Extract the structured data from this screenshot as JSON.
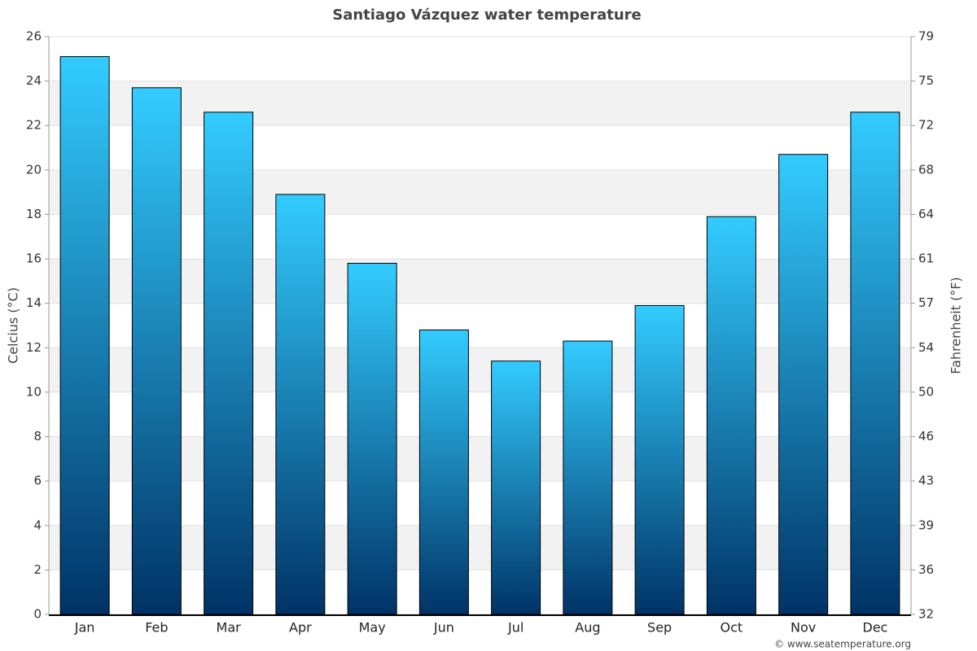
{
  "chart_data": {
    "type": "bar",
    "title": "Santiago Vázquez water temperature",
    "y_label": "Celcius (°C)",
    "y2_label": "Fahrenheit (°F)",
    "credit": "© www.seatemperature.org",
    "categories": [
      "Jan",
      "Feb",
      "Mar",
      "Apr",
      "May",
      "Jun",
      "Jul",
      "Aug",
      "Sep",
      "Oct",
      "Nov",
      "Dec"
    ],
    "values": [
      25.1,
      23.7,
      22.6,
      18.9,
      15.8,
      12.8,
      11.4,
      12.3,
      13.9,
      17.9,
      20.7,
      22.6
    ],
    "color": [
      "#33ccff",
      "#003366"
    ],
    "ylim": [
      0,
      26
    ],
    "yticks": [
      0,
      2,
      4,
      6,
      8,
      10,
      12,
      14,
      16,
      18,
      20,
      22,
      24,
      26
    ],
    "y2lim": [
      32,
      78.8
    ],
    "y2ticks": [
      32,
      {
        "value": 35.6,
        "label": "36"
      },
      {
        "value": 39.2,
        "label": "39"
      },
      {
        "value": 42.8,
        "label": "43"
      },
      {
        "value": 46.4,
        "label": "46"
      },
      50,
      {
        "value": 53.6,
        "label": "54"
      },
      {
        "value": 57.2,
        "label": "57"
      },
      {
        "value": 60.8,
        "label": "61"
      },
      {
        "value": 64.4,
        "label": "64"
      },
      68,
      {
        "value": 71.6,
        "label": "72"
      },
      {
        "value": 75.2,
        "label": "75"
      },
      {
        "value": 78.8,
        "label": "79"
      }
    ],
    "grid": true
  }
}
